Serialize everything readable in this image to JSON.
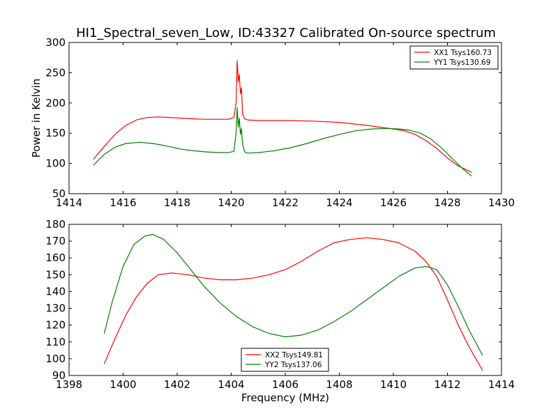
{
  "figure": {
    "title": "HI1_Spectral_seven_Low, ID:43327 Calibrated On-source spectrum"
  },
  "chart_data": [
    {
      "type": "line",
      "title": "HI1_Spectral_seven_Low, ID:43327 Calibrated On-source spectrum",
      "xlabel": "",
      "ylabel": "Power in Kelvin",
      "xlim": [
        1414,
        1430
      ],
      "ylim": [
        50,
        300
      ],
      "xticks": [
        "1414",
        "1416",
        "1418",
        "1420",
        "1422",
        "1424",
        "1426",
        "1428",
        "1430"
      ],
      "yticks": [
        "50",
        "100",
        "150",
        "200",
        "250",
        "300"
      ],
      "grid": false,
      "legend_position": "top-right",
      "series": [
        {
          "name": "XX1 Tsys160.73",
          "color": "#ff0000",
          "x": [
            1414.9,
            1415.3,
            1415.7,
            1416.1,
            1416.5,
            1416.9,
            1417.3,
            1417.7,
            1418.1,
            1418.5,
            1419.0,
            1419.5,
            1419.9,
            1420.1,
            1420.18,
            1420.22,
            1420.26,
            1420.3,
            1420.34,
            1420.38,
            1420.42,
            1420.46,
            1420.5,
            1420.6,
            1421.0,
            1422.0,
            1423.0,
            1424.0,
            1424.6,
            1425.0,
            1425.5,
            1426.0,
            1426.4,
            1426.8,
            1427.2,
            1427.6,
            1428.0,
            1428.4,
            1428.9
          ],
          "y": [
            107,
            128,
            148,
            163,
            172,
            176,
            177,
            176,
            175,
            174,
            173,
            173,
            173,
            176,
            200,
            270,
            235,
            247,
            215,
            225,
            182,
            178,
            174,
            172,
            171,
            171,
            170,
            168,
            165,
            163,
            160,
            157,
            154,
            148,
            138,
            125,
            109,
            96,
            85
          ]
        },
        {
          "name": "YY1 Tsys130.69",
          "color": "#008000",
          "x": [
            1414.9,
            1415.3,
            1415.7,
            1416.1,
            1416.6,
            1417.1,
            1417.6,
            1418.1,
            1418.6,
            1419.1,
            1419.6,
            1419.9,
            1420.1,
            1420.18,
            1420.22,
            1420.26,
            1420.3,
            1420.34,
            1420.38,
            1420.42,
            1420.46,
            1420.5,
            1420.6,
            1421.0,
            1421.6,
            1422.2,
            1422.8,
            1423.4,
            1424.0,
            1424.6,
            1425.2,
            1425.8,
            1426.2,
            1426.6,
            1427.0,
            1427.4,
            1427.8,
            1428.2,
            1428.6,
            1428.9
          ],
          "y": [
            97,
            115,
            127,
            133,
            135,
            133,
            129,
            124,
            121,
            119,
            118,
            118,
            120,
            150,
            192,
            160,
            175,
            148,
            158,
            132,
            125,
            119,
            117,
            118,
            121,
            126,
            133,
            141,
            148,
            154,
            157,
            158,
            157,
            155,
            150,
            140,
            125,
            107,
            90,
            79
          ]
        }
      ]
    },
    {
      "type": "line",
      "title": "",
      "xlabel": "Frequency (MHz)",
      "ylabel": "",
      "xlim": [
        1398,
        1414
      ],
      "ylim": [
        90,
        180
      ],
      "xticks": [
        "1398",
        "1400",
        "1402",
        "1404",
        "1406",
        "1408",
        "1410",
        "1412",
        "1414"
      ],
      "yticks": [
        "90",
        "100",
        "110",
        "120",
        "130",
        "140",
        "150",
        "160",
        "170",
        "180"
      ],
      "grid": false,
      "legend_position": "bottom-center",
      "series": [
        {
          "name": "XX2 Tsys149.81",
          "color": "#ff0000",
          "x": [
            1399.3,
            1399.7,
            1400.1,
            1400.5,
            1400.9,
            1401.3,
            1401.8,
            1402.4,
            1403.0,
            1403.6,
            1404.2,
            1404.8,
            1405.4,
            1406.0,
            1406.6,
            1407.2,
            1407.8,
            1408.4,
            1409.0,
            1409.6,
            1410.2,
            1410.8,
            1411.2,
            1411.6,
            1412.0,
            1412.4,
            1412.8,
            1413.3
          ],
          "y": [
            97,
            112,
            126,
            137,
            145,
            150,
            151,
            150,
            148,
            147,
            147,
            148,
            150,
            153,
            158,
            164,
            169,
            171,
            172,
            171,
            169,
            164,
            158,
            149,
            135,
            120,
            107,
            93
          ]
        },
        {
          "name": "YY2 Tsys137.06",
          "color": "#008000",
          "x": [
            1399.3,
            1399.6,
            1400.0,
            1400.4,
            1400.8,
            1401.1,
            1401.5,
            1402.0,
            1402.5,
            1403.0,
            1403.6,
            1404.2,
            1404.8,
            1405.4,
            1406.0,
            1406.6,
            1407.2,
            1407.8,
            1408.4,
            1409.0,
            1409.6,
            1410.2,
            1410.8,
            1411.2,
            1411.6,
            1412.0,
            1412.4,
            1412.8,
            1413.3
          ],
          "y": [
            115,
            134,
            155,
            168,
            173,
            174,
            171,
            163,
            153,
            143,
            133,
            125,
            119,
            115,
            113,
            114,
            117,
            122,
            128,
            135,
            142,
            149,
            154,
            155,
            153,
            144,
            131,
            117,
            102
          ]
        }
      ]
    }
  ]
}
